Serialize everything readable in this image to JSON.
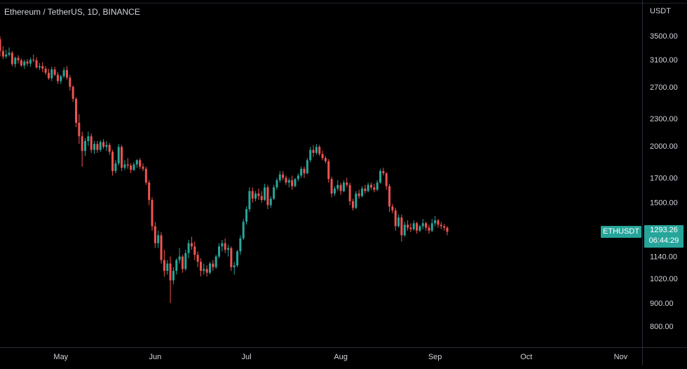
{
  "header": {
    "title": "Ethereum / TetherUS, 1D, BINANCE",
    "unit": "USDT"
  },
  "symbol_tag": "ETHUSDT",
  "last_price_label": "1293.26",
  "countdown": "06:44:29",
  "colors": {
    "background": "#000000",
    "up": "#26a69a",
    "down": "#ef5350",
    "text": "#d1d4dc",
    "axis_border": "#2a2e39"
  },
  "chart_data": {
    "type": "candlestick",
    "scale": "log",
    "y_ticks": [
      "3500.00",
      "3100.00",
      "2700.00",
      "2300.00",
      "2000.00",
      "1700.00",
      "1500.00",
      "1140.00",
      "1020.00",
      "900.00",
      "800.00"
    ],
    "x_ticks": [
      "May",
      "Jun",
      "Jul",
      "Aug",
      "Sep",
      "Oct",
      "Nov"
    ],
    "ylim": [
      740,
      4000
    ],
    "start_date": "2022-04-11",
    "candles": [
      [
        3440,
        3490,
        3150,
        3240
      ],
      [
        3240,
        3320,
        3110,
        3150
      ],
      [
        3150,
        3260,
        3120,
        3180
      ],
      [
        3180,
        3300,
        3150,
        3210
      ],
      [
        3210,
        3240,
        3000,
        3030
      ],
      [
        3030,
        3150,
        2980,
        3130
      ],
      [
        3130,
        3170,
        3040,
        3090
      ],
      [
        3090,
        3120,
        2990,
        3010
      ],
      [
        3010,
        3100,
        2960,
        3070
      ],
      [
        3070,
        3110,
        3000,
        3040
      ],
      [
        3040,
        3130,
        2990,
        3100
      ],
      [
        3100,
        3180,
        3060,
        3090
      ],
      [
        3090,
        3140,
        2960,
        2980
      ],
      [
        2980,
        3050,
        2940,
        3000
      ],
      [
        3000,
        3060,
        2910,
        2960
      ],
      [
        2960,
        3000,
        2870,
        2900
      ],
      [
        2900,
        2960,
        2800,
        2820
      ],
      [
        2820,
        2990,
        2780,
        2950
      ],
      [
        2950,
        2990,
        2850,
        2870
      ],
      [
        2870,
        2910,
        2740,
        2780
      ],
      [
        2780,
        2870,
        2740,
        2850
      ],
      [
        2850,
        2980,
        2820,
        2940
      ],
      [
        2940,
        3000,
        2800,
        2830
      ],
      [
        2830,
        2870,
        2650,
        2700
      ],
      [
        2700,
        2720,
        2500,
        2540
      ],
      [
        2540,
        2560,
        2200,
        2250
      ],
      [
        2250,
        2350,
        2020,
        2100
      ],
      [
        2100,
        2150,
        1800,
        1950
      ],
      [
        1950,
        2080,
        1900,
        2050
      ],
      [
        2050,
        2150,
        2000,
        2100
      ],
      [
        2100,
        2130,
        1930,
        1960
      ],
      [
        1960,
        2050,
        1920,
        2020
      ],
      [
        2020,
        2050,
        1930,
        1960
      ],
      [
        1960,
        2060,
        1940,
        2040
      ],
      [
        2040,
        2070,
        1970,
        1990
      ],
      [
        1990,
        2050,
        1950,
        2010
      ],
      [
        2010,
        2030,
        1910,
        1940
      ],
      [
        1940,
        1960,
        1720,
        1760
      ],
      [
        1760,
        1860,
        1740,
        1830
      ],
      [
        1830,
        2020,
        1810,
        1990
      ],
      [
        1990,
        2010,
        1760,
        1790
      ],
      [
        1790,
        1860,
        1770,
        1820
      ],
      [
        1820,
        1880,
        1780,
        1810
      ],
      [
        1810,
        1830,
        1740,
        1770
      ],
      [
        1770,
        1840,
        1760,
        1820
      ],
      [
        1820,
        1870,
        1790,
        1860
      ],
      [
        1860,
        1880,
        1780,
        1800
      ],
      [
        1800,
        1830,
        1760,
        1780
      ],
      [
        1780,
        1800,
        1640,
        1660
      ],
      [
        1660,
        1680,
        1480,
        1520
      ],
      [
        1520,
        1540,
        1300,
        1330
      ],
      [
        1330,
        1360,
        1190,
        1220
      ],
      [
        1220,
        1300,
        1190,
        1270
      ],
      [
        1270,
        1290,
        1100,
        1120
      ],
      [
        1120,
        1180,
        1030,
        1060
      ],
      [
        1060,
        1120,
        1040,
        1100
      ],
      [
        1100,
        1140,
        900,
        1010
      ],
      [
        1010,
        1080,
        990,
        1060
      ],
      [
        1060,
        1130,
        1040,
        1120
      ],
      [
        1120,
        1190,
        1100,
        1140
      ],
      [
        1140,
        1150,
        1050,
        1070
      ],
      [
        1070,
        1180,
        1060,
        1160
      ],
      [
        1160,
        1240,
        1130,
        1220
      ],
      [
        1220,
        1260,
        1180,
        1200
      ],
      [
        1200,
        1230,
        1120,
        1150
      ],
      [
        1150,
        1170,
        1080,
        1110
      ],
      [
        1110,
        1130,
        1030,
        1060
      ],
      [
        1060,
        1100,
        1040,
        1070
      ],
      [
        1070,
        1090,
        1030,
        1050
      ],
      [
        1050,
        1110,
        1040,
        1100
      ],
      [
        1100,
        1120,
        1060,
        1080
      ],
      [
        1080,
        1150,
        1070,
        1140
      ],
      [
        1140,
        1220,
        1130,
        1200
      ],
      [
        1200,
        1240,
        1170,
        1220
      ],
      [
        1220,
        1250,
        1160,
        1180
      ],
      [
        1180,
        1210,
        1140,
        1190
      ],
      [
        1190,
        1200,
        1060,
        1080
      ],
      [
        1080,
        1110,
        1040,
        1090
      ],
      [
        1090,
        1180,
        1080,
        1170
      ],
      [
        1170,
        1270,
        1150,
        1250
      ],
      [
        1250,
        1380,
        1240,
        1360
      ],
      [
        1360,
        1470,
        1340,
        1450
      ],
      [
        1450,
        1620,
        1430,
        1590
      ],
      [
        1590,
        1620,
        1500,
        1530
      ],
      [
        1530,
        1590,
        1510,
        1570
      ],
      [
        1570,
        1610,
        1520,
        1550
      ],
      [
        1550,
        1590,
        1500,
        1520
      ],
      [
        1520,
        1650,
        1510,
        1620
      ],
      [
        1620,
        1640,
        1450,
        1480
      ],
      [
        1480,
        1550,
        1460,
        1530
      ],
      [
        1530,
        1640,
        1520,
        1620
      ],
      [
        1620,
        1700,
        1600,
        1680
      ],
      [
        1680,
        1760,
        1660,
        1730
      ],
      [
        1730,
        1760,
        1680,
        1700
      ],
      [
        1700,
        1720,
        1640,
        1660
      ],
      [
        1660,
        1700,
        1620,
        1680
      ],
      [
        1680,
        1720,
        1600,
        1630
      ],
      [
        1630,
        1700,
        1620,
        1690
      ],
      [
        1690,
        1740,
        1670,
        1720
      ],
      [
        1720,
        1800,
        1700,
        1780
      ],
      [
        1780,
        1800,
        1700,
        1740
      ],
      [
        1740,
        1880,
        1730,
        1860
      ],
      [
        1860,
        1990,
        1840,
        1960
      ],
      [
        1960,
        2010,
        1890,
        1930
      ],
      [
        1930,
        2020,
        1910,
        1990
      ],
      [
        1990,
        2010,
        1900,
        1920
      ],
      [
        1920,
        1950,
        1860,
        1880
      ],
      [
        1880,
        1900,
        1830,
        1850
      ],
      [
        1850,
        1870,
        1660,
        1690
      ],
      [
        1690,
        1710,
        1540,
        1570
      ],
      [
        1570,
        1630,
        1550,
        1610
      ],
      [
        1610,
        1680,
        1590,
        1640
      ],
      [
        1640,
        1660,
        1560,
        1590
      ],
      [
        1590,
        1680,
        1580,
        1660
      ],
      [
        1660,
        1700,
        1620,
        1640
      ],
      [
        1640,
        1660,
        1480,
        1510
      ],
      [
        1510,
        1530,
        1440,
        1460
      ],
      [
        1460,
        1590,
        1450,
        1570
      ],
      [
        1570,
        1600,
        1530,
        1550
      ],
      [
        1550,
        1630,
        1540,
        1610
      ],
      [
        1610,
        1640,
        1570,
        1590
      ],
      [
        1590,
        1660,
        1580,
        1640
      ],
      [
        1640,
        1660,
        1600,
        1620
      ],
      [
        1620,
        1650,
        1580,
        1600
      ],
      [
        1600,
        1680,
        1590,
        1660
      ],
      [
        1660,
        1780,
        1650,
        1760
      ],
      [
        1760,
        1790,
        1720,
        1740
      ],
      [
        1740,
        1750,
        1600,
        1630
      ],
      [
        1630,
        1650,
        1430,
        1470
      ],
      [
        1470,
        1490,
        1420,
        1440
      ],
      [
        1440,
        1460,
        1300,
        1330
      ],
      [
        1330,
        1410,
        1320,
        1390
      ],
      [
        1390,
        1410,
        1230,
        1270
      ],
      [
        1270,
        1360,
        1260,
        1340
      ],
      [
        1340,
        1370,
        1300,
        1320
      ],
      [
        1320,
        1350,
        1290,
        1310
      ],
      [
        1310,
        1370,
        1300,
        1350
      ],
      [
        1350,
        1360,
        1280,
        1300
      ],
      [
        1300,
        1340,
        1290,
        1330
      ],
      [
        1330,
        1380,
        1310,
        1350
      ],
      [
        1350,
        1360,
        1300,
        1320
      ],
      [
        1320,
        1340,
        1280,
        1300
      ],
      [
        1300,
        1380,
        1290,
        1350
      ],
      [
        1350,
        1400,
        1330,
        1370
      ],
      [
        1370,
        1380,
        1320,
        1340
      ],
      [
        1340,
        1360,
        1310,
        1330
      ],
      [
        1330,
        1345,
        1300,
        1320
      ],
      [
        1320,
        1330,
        1270,
        1293.26
      ]
    ]
  }
}
